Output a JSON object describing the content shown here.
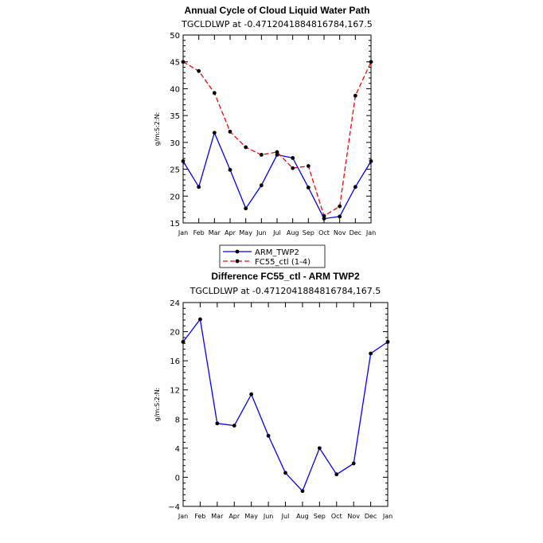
{
  "chart_data": [
    {
      "type": "line",
      "title": "Annual Cycle of Cloud Liquid Water Path",
      "subtitle": "TGCLDLWP at -0.4712041884816784,167.5",
      "ylabel": "g/m:S:2:N:",
      "xlabel": "",
      "categories": [
        "Jan",
        "Feb",
        "Mar",
        "Apr",
        "May",
        "Jun",
        "Jul",
        "Aug",
        "Sep",
        "Oct",
        "Nov",
        "Dec",
        "Jan"
      ],
      "ylim": [
        15,
        50
      ],
      "yticks": [
        15,
        20,
        25,
        30,
        35,
        40,
        45,
        50
      ],
      "series": [
        {
          "name": "ARM_TWP2",
          "color": "#0000ff",
          "dash": "solid",
          "values": [
            26.5,
            21.7,
            31.8,
            24.9,
            17.7,
            22.0,
            27.7,
            27.1,
            21.6,
            15.8,
            16.2,
            21.7,
            26.5
          ]
        },
        {
          "name": "FC55_ctl (1-4)",
          "color": "#ff0000",
          "dash": "dashed",
          "values": [
            45.0,
            43.3,
            39.2,
            32.0,
            29.1,
            27.7,
            28.2,
            25.2,
            25.6,
            16.3,
            18.1,
            38.7,
            45.0
          ]
        }
      ],
      "legend": "below",
      "grid": false
    },
    {
      "type": "line",
      "title": "Difference FC55_ctl - ARM TWP2",
      "subtitle": "TGCLDLWP at -0.4712041884816784,167.5",
      "ylabel": "g/m:S:2:N:",
      "xlabel": "",
      "categories": [
        "Jan",
        "Feb",
        "Mar",
        "Apr",
        "May",
        "Jun",
        "Jul",
        "Aug",
        "Sep",
        "Oct",
        "Nov",
        "Dec",
        "Jan"
      ],
      "ylim": [
        -4,
        24
      ],
      "yticks": [
        -4,
        0,
        4,
        8,
        12,
        16,
        20,
        24
      ],
      "series": [
        {
          "name": "",
          "color": "#0000ff",
          "dash": "solid",
          "values": [
            18.6,
            21.7,
            7.4,
            7.1,
            11.4,
            5.7,
            0.6,
            -1.9,
            4.0,
            0.4,
            1.9,
            17.0,
            18.6
          ]
        }
      ],
      "grid": false
    }
  ]
}
